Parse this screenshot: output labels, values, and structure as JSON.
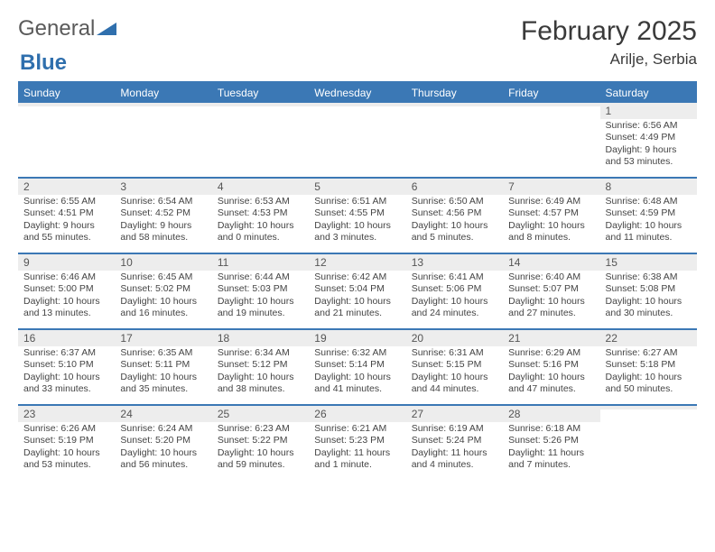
{
  "brand": {
    "general": "General",
    "blue": "Blue",
    "tri_color": "#2f6fad"
  },
  "title": "February 2025",
  "location": "Arilje, Serbia",
  "header_bg": "#3b78b5",
  "header_fg": "#ffffff",
  "stripe_bg": "#ededed",
  "daynames": [
    "Sunday",
    "Monday",
    "Tuesday",
    "Wednesday",
    "Thursday",
    "Friday",
    "Saturday"
  ],
  "weeks": [
    [
      null,
      null,
      null,
      null,
      null,
      null,
      {
        "n": "1",
        "sr": "Sunrise: 6:56 AM",
        "ss": "Sunset: 4:49 PM",
        "dl1": "Daylight: 9 hours",
        "dl2": "and 53 minutes."
      }
    ],
    [
      {
        "n": "2",
        "sr": "Sunrise: 6:55 AM",
        "ss": "Sunset: 4:51 PM",
        "dl1": "Daylight: 9 hours",
        "dl2": "and 55 minutes."
      },
      {
        "n": "3",
        "sr": "Sunrise: 6:54 AM",
        "ss": "Sunset: 4:52 PM",
        "dl1": "Daylight: 9 hours",
        "dl2": "and 58 minutes."
      },
      {
        "n": "4",
        "sr": "Sunrise: 6:53 AM",
        "ss": "Sunset: 4:53 PM",
        "dl1": "Daylight: 10 hours",
        "dl2": "and 0 minutes."
      },
      {
        "n": "5",
        "sr": "Sunrise: 6:51 AM",
        "ss": "Sunset: 4:55 PM",
        "dl1": "Daylight: 10 hours",
        "dl2": "and 3 minutes."
      },
      {
        "n": "6",
        "sr": "Sunrise: 6:50 AM",
        "ss": "Sunset: 4:56 PM",
        "dl1": "Daylight: 10 hours",
        "dl2": "and 5 minutes."
      },
      {
        "n": "7",
        "sr": "Sunrise: 6:49 AM",
        "ss": "Sunset: 4:57 PM",
        "dl1": "Daylight: 10 hours",
        "dl2": "and 8 minutes."
      },
      {
        "n": "8",
        "sr": "Sunrise: 6:48 AM",
        "ss": "Sunset: 4:59 PM",
        "dl1": "Daylight: 10 hours",
        "dl2": "and 11 minutes."
      }
    ],
    [
      {
        "n": "9",
        "sr": "Sunrise: 6:46 AM",
        "ss": "Sunset: 5:00 PM",
        "dl1": "Daylight: 10 hours",
        "dl2": "and 13 minutes."
      },
      {
        "n": "10",
        "sr": "Sunrise: 6:45 AM",
        "ss": "Sunset: 5:02 PM",
        "dl1": "Daylight: 10 hours",
        "dl2": "and 16 minutes."
      },
      {
        "n": "11",
        "sr": "Sunrise: 6:44 AM",
        "ss": "Sunset: 5:03 PM",
        "dl1": "Daylight: 10 hours",
        "dl2": "and 19 minutes."
      },
      {
        "n": "12",
        "sr": "Sunrise: 6:42 AM",
        "ss": "Sunset: 5:04 PM",
        "dl1": "Daylight: 10 hours",
        "dl2": "and 21 minutes."
      },
      {
        "n": "13",
        "sr": "Sunrise: 6:41 AM",
        "ss": "Sunset: 5:06 PM",
        "dl1": "Daylight: 10 hours",
        "dl2": "and 24 minutes."
      },
      {
        "n": "14",
        "sr": "Sunrise: 6:40 AM",
        "ss": "Sunset: 5:07 PM",
        "dl1": "Daylight: 10 hours",
        "dl2": "and 27 minutes."
      },
      {
        "n": "15",
        "sr": "Sunrise: 6:38 AM",
        "ss": "Sunset: 5:08 PM",
        "dl1": "Daylight: 10 hours",
        "dl2": "and 30 minutes."
      }
    ],
    [
      {
        "n": "16",
        "sr": "Sunrise: 6:37 AM",
        "ss": "Sunset: 5:10 PM",
        "dl1": "Daylight: 10 hours",
        "dl2": "and 33 minutes."
      },
      {
        "n": "17",
        "sr": "Sunrise: 6:35 AM",
        "ss": "Sunset: 5:11 PM",
        "dl1": "Daylight: 10 hours",
        "dl2": "and 35 minutes."
      },
      {
        "n": "18",
        "sr": "Sunrise: 6:34 AM",
        "ss": "Sunset: 5:12 PM",
        "dl1": "Daylight: 10 hours",
        "dl2": "and 38 minutes."
      },
      {
        "n": "19",
        "sr": "Sunrise: 6:32 AM",
        "ss": "Sunset: 5:14 PM",
        "dl1": "Daylight: 10 hours",
        "dl2": "and 41 minutes."
      },
      {
        "n": "20",
        "sr": "Sunrise: 6:31 AM",
        "ss": "Sunset: 5:15 PM",
        "dl1": "Daylight: 10 hours",
        "dl2": "and 44 minutes."
      },
      {
        "n": "21",
        "sr": "Sunrise: 6:29 AM",
        "ss": "Sunset: 5:16 PM",
        "dl1": "Daylight: 10 hours",
        "dl2": "and 47 minutes."
      },
      {
        "n": "22",
        "sr": "Sunrise: 6:27 AM",
        "ss": "Sunset: 5:18 PM",
        "dl1": "Daylight: 10 hours",
        "dl2": "and 50 minutes."
      }
    ],
    [
      {
        "n": "23",
        "sr": "Sunrise: 6:26 AM",
        "ss": "Sunset: 5:19 PM",
        "dl1": "Daylight: 10 hours",
        "dl2": "and 53 minutes."
      },
      {
        "n": "24",
        "sr": "Sunrise: 6:24 AM",
        "ss": "Sunset: 5:20 PM",
        "dl1": "Daylight: 10 hours",
        "dl2": "and 56 minutes."
      },
      {
        "n": "25",
        "sr": "Sunrise: 6:23 AM",
        "ss": "Sunset: 5:22 PM",
        "dl1": "Daylight: 10 hours",
        "dl2": "and 59 minutes."
      },
      {
        "n": "26",
        "sr": "Sunrise: 6:21 AM",
        "ss": "Sunset: 5:23 PM",
        "dl1": "Daylight: 11 hours",
        "dl2": "and 1 minute."
      },
      {
        "n": "27",
        "sr": "Sunrise: 6:19 AM",
        "ss": "Sunset: 5:24 PM",
        "dl1": "Daylight: 11 hours",
        "dl2": "and 4 minutes."
      },
      {
        "n": "28",
        "sr": "Sunrise: 6:18 AM",
        "ss": "Sunset: 5:26 PM",
        "dl1": "Daylight: 11 hours",
        "dl2": "and 7 minutes."
      },
      null
    ]
  ]
}
